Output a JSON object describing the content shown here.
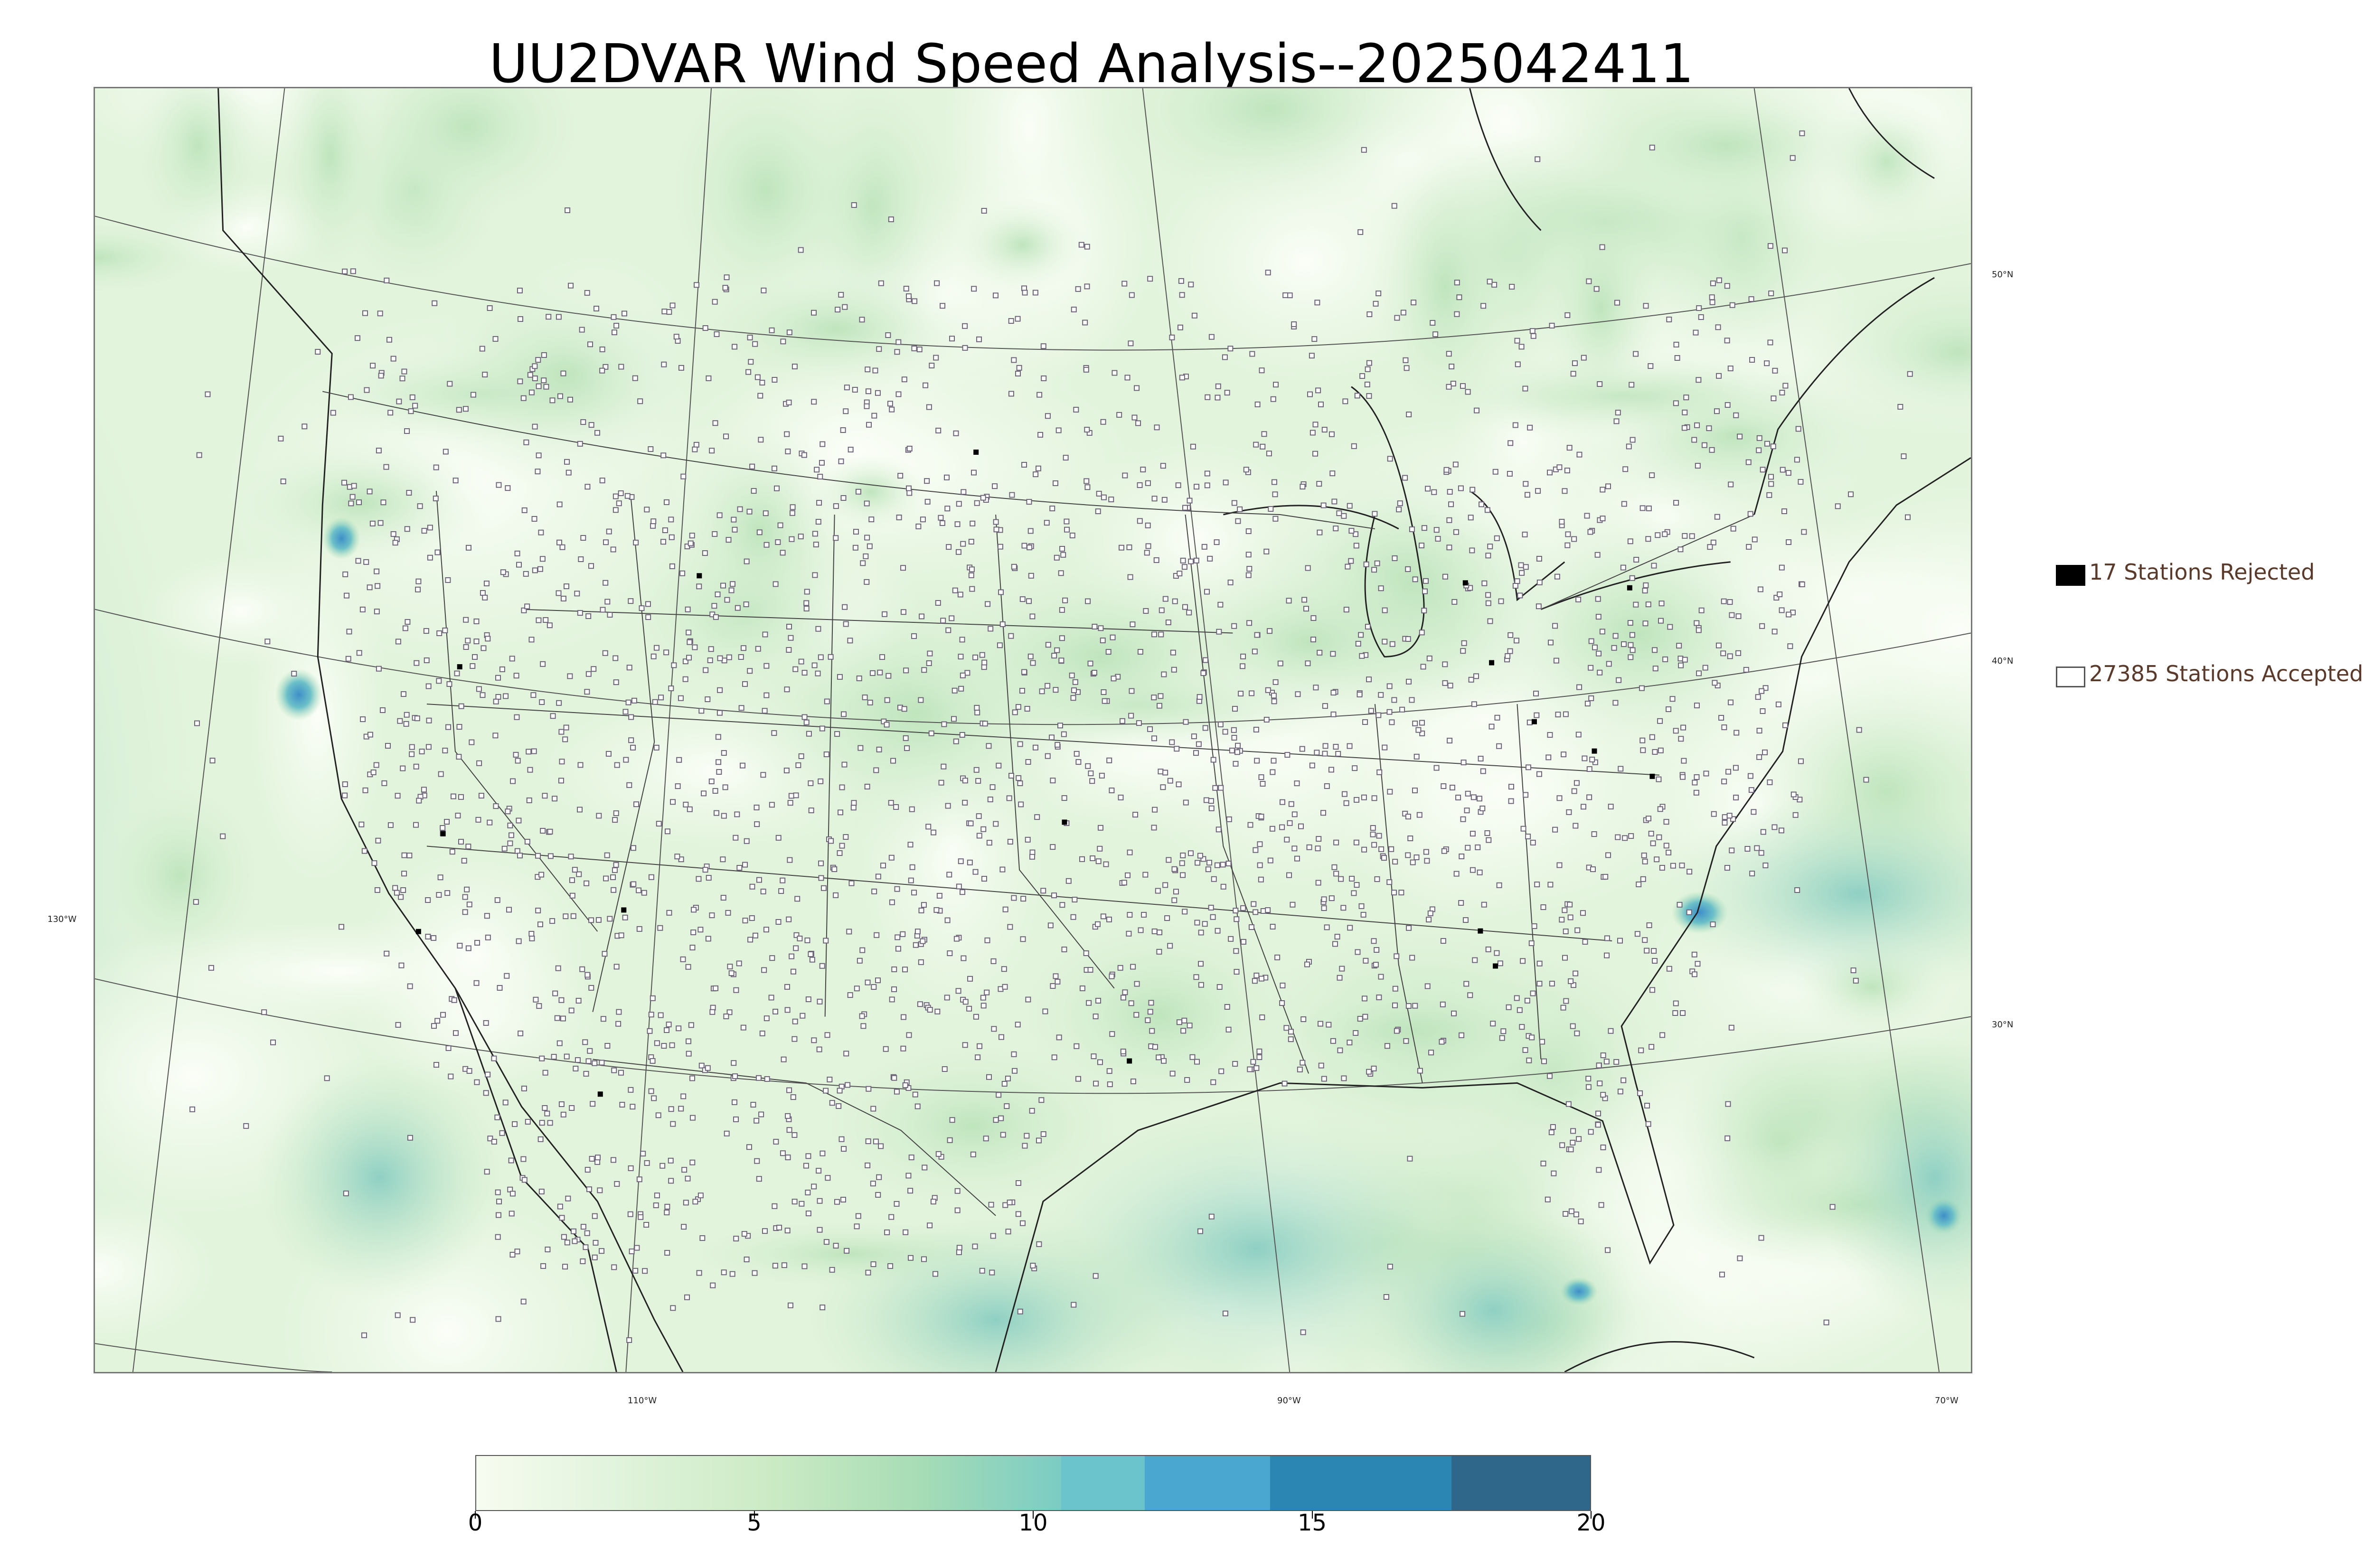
{
  "title": "UU2DVAR Wind Speed Analysis--2025042411",
  "map": {
    "latitude_labels": [
      "50°N",
      "40°N",
      "30°N"
    ],
    "longitude_labels": [
      "130°W",
      "110°W",
      "90°W",
      "70°W"
    ],
    "background_colors": {
      "low": "#f4fbef",
      "mid": "#c9e9c4",
      "high": "#8fd0bf",
      "peak": "#4a9fcf"
    },
    "station_marker_color": "#6d6478"
  },
  "legend": {
    "items": [
      {
        "label": "17 Stations Rejected",
        "swatch_style": "filled",
        "color": "#000000"
      },
      {
        "label": "27385 Stations Accepted",
        "swatch_style": "outline",
        "color": "#555555"
      }
    ]
  },
  "colorbar": {
    "min": 0,
    "max": 20,
    "tick_labels": [
      "0",
      "5",
      "10",
      "15",
      "20"
    ],
    "segments": [
      {
        "from": 0,
        "to": 10.5,
        "gradient": [
          "#f7fcf0",
          "#e0f3db",
          "#ccebc5",
          "#a8ddb5",
          "#7bccc4"
        ]
      },
      {
        "from": 10.5,
        "to": 12,
        "color": "#6bc3cb"
      },
      {
        "from": 12,
        "to": 14.25,
        "color": "#4aa8d0"
      },
      {
        "from": 14.25,
        "to": 17.5,
        "color": "#2b86b4"
      },
      {
        "from": 17.5,
        "to": 20,
        "color": "#2e678a"
      }
    ]
  }
}
